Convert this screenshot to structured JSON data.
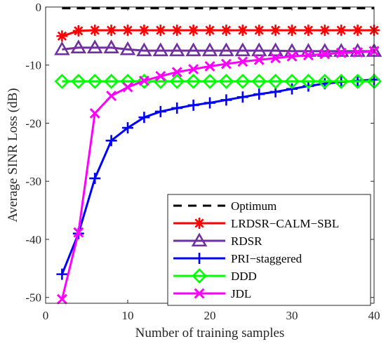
{
  "chart_data": {
    "type": "line",
    "title": "",
    "xlabel": "Number of training samples",
    "ylabel": "Average SINR Loss (dB)",
    "xlim": [
      0,
      40
    ],
    "ylim": [
      -51,
      0
    ],
    "xticks": [
      0,
      10,
      20,
      30,
      40
    ],
    "yticks": [
      0,
      -10,
      -20,
      -30,
      -40,
      -50
    ],
    "grid": false,
    "legend_position": "bottom-right",
    "series": [
      {
        "name": "Optimum",
        "color": "#000000",
        "line_style": "dashed",
        "marker": "none",
        "x": [
          2,
          4,
          6,
          8,
          10,
          12,
          14,
          16,
          18,
          20,
          22,
          24,
          26,
          28,
          30,
          32,
          34,
          36,
          38,
          40
        ],
        "y": [
          -0.2,
          -0.2,
          -0.2,
          -0.2,
          -0.2,
          -0.2,
          -0.2,
          -0.2,
          -0.2,
          -0.2,
          -0.2,
          -0.2,
          -0.2,
          -0.2,
          -0.2,
          -0.2,
          -0.2,
          -0.2,
          -0.2,
          -0.2
        ]
      },
      {
        "name": "LRDSR−CALM−SBL",
        "color": "#ff0000",
        "line_style": "solid",
        "marker": "asterisk",
        "x": [
          2,
          4,
          6,
          8,
          10,
          12,
          14,
          16,
          18,
          20,
          22,
          24,
          26,
          28,
          30,
          32,
          34,
          36,
          38,
          40
        ],
        "y": [
          -5.0,
          -4.1,
          -4.0,
          -4.0,
          -4.0,
          -4.0,
          -4.0,
          -4.0,
          -4.0,
          -4.0,
          -4.0,
          -4.0,
          -4.0,
          -4.0,
          -4.0,
          -4.0,
          -4.0,
          -4.0,
          -4.0,
          -4.0
        ]
      },
      {
        "name": "RDSR",
        "color": "#7030a0",
        "line_style": "solid",
        "marker": "triangle",
        "x": [
          2,
          4,
          6,
          8,
          10,
          12,
          14,
          16,
          18,
          20,
          22,
          24,
          26,
          28,
          30,
          32,
          34,
          36,
          38,
          40
        ],
        "y": [
          -7.3,
          -7.0,
          -7.0,
          -7.0,
          -7.3,
          -7.5,
          -7.5,
          -7.5,
          -7.5,
          -7.5,
          -7.5,
          -7.5,
          -7.5,
          -7.5,
          -7.6,
          -7.6,
          -7.6,
          -7.6,
          -7.6,
          -7.6
        ]
      },
      {
        "name": "PRI−staggered",
        "color": "#0000ff",
        "line_style": "solid",
        "marker": "plus",
        "x": [
          2,
          4,
          6,
          8,
          10,
          12,
          14,
          16,
          18,
          20,
          22,
          24,
          26,
          28,
          30,
          32,
          34,
          36,
          38,
          40
        ],
        "y": [
          -46.0,
          -39.0,
          -29.5,
          -23.0,
          -20.8,
          -19.0,
          -18.0,
          -17.4,
          -16.9,
          -16.5,
          -16.0,
          -15.5,
          -15.0,
          -14.6,
          -14.1,
          -13.6,
          -13.2,
          -12.9,
          -12.7,
          -12.5
        ]
      },
      {
        "name": "DDD",
        "color": "#00ff00",
        "line_style": "solid",
        "marker": "diamond",
        "x": [
          2,
          4,
          6,
          8,
          10,
          12,
          14,
          16,
          18,
          20,
          22,
          24,
          26,
          28,
          30,
          32,
          34,
          36,
          38,
          40
        ],
        "y": [
          -12.8,
          -12.8,
          -12.8,
          -12.8,
          -12.8,
          -12.8,
          -12.8,
          -12.8,
          -12.8,
          -12.8,
          -12.8,
          -12.8,
          -12.8,
          -12.8,
          -12.8,
          -12.8,
          -12.8,
          -12.8,
          -12.8,
          -12.8
        ]
      },
      {
        "name": "JDL",
        "color": "#ff00ff",
        "line_style": "solid",
        "marker": "x",
        "x": [
          2,
          4,
          6,
          8,
          10,
          12,
          14,
          16,
          18,
          20,
          22,
          24,
          26,
          28,
          30,
          32,
          34,
          36,
          38,
          40
        ],
        "y": [
          -50.3,
          -38.8,
          -18.3,
          -15.3,
          -13.8,
          -12.7,
          -11.9,
          -11.2,
          -10.7,
          -10.2,
          -9.8,
          -9.4,
          -9.1,
          -8.8,
          -8.5,
          -8.3,
          -8.1,
          -7.9,
          -7.8,
          -7.6
        ]
      }
    ]
  }
}
